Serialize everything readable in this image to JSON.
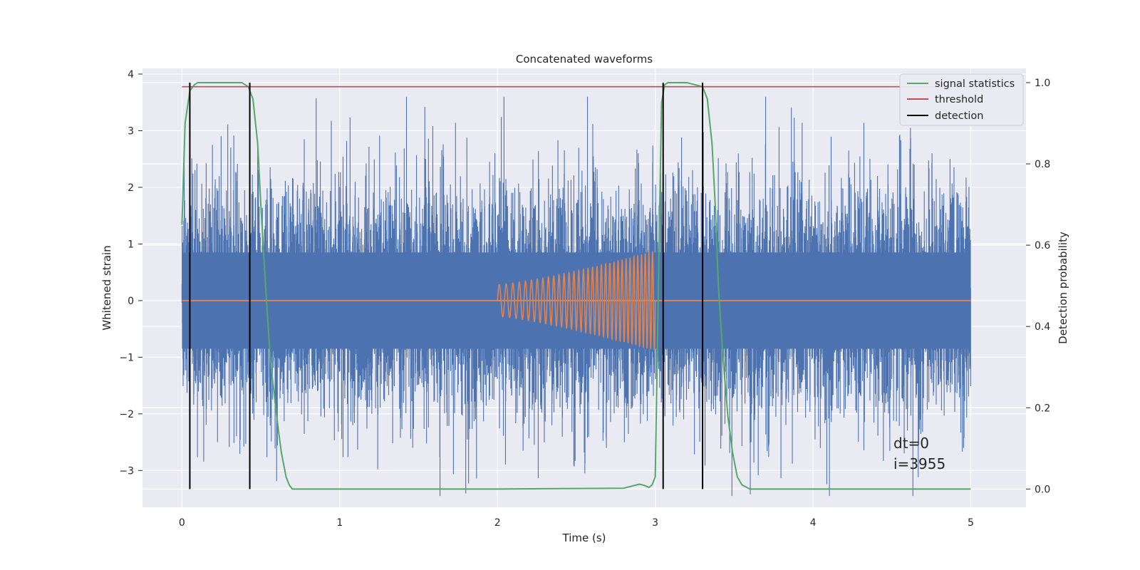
{
  "chart_data": {
    "type": "line",
    "title": "Concatenated waveforms",
    "xlabel": "Time (s)",
    "ylabel_left": "Whitened strain",
    "ylabel_right": "Detection probability",
    "xlim": [
      -0.25,
      5.35
    ],
    "ylim_left": [
      -3.65,
      4.1
    ],
    "ylim_right": [
      -0.045,
      1.035
    ],
    "x_ticks": [
      0,
      1,
      2,
      3,
      4,
      5
    ],
    "y_left_ticks": [
      -3,
      -2,
      -1,
      0,
      1,
      2,
      3,
      4
    ],
    "y_right_ticks": [
      0.0,
      0.2,
      0.4,
      0.6,
      0.8,
      1.0
    ],
    "grid": true,
    "legend_position": "top-right",
    "legend": [
      "signal statistics",
      "threshold",
      "detection"
    ],
    "annotations": [
      "dt=0",
      "i=3955"
    ],
    "colors": {
      "strain": "#4c72b0",
      "template": "#dd8452",
      "signal_statistics": "#55a868",
      "threshold": "#c44e52",
      "detection": "#000000",
      "axes_bg": "#eaeaf2",
      "grid": "#ffffff"
    },
    "series": [
      {
        "name": "signal statistics",
        "axis": "right",
        "x": [
          0,
          0.02,
          0.05,
          0.08,
          0.1,
          0.15,
          0.2,
          0.3,
          0.38,
          0.42,
          0.45,
          0.48,
          0.5,
          0.53,
          0.56,
          0.6,
          0.63,
          0.66,
          0.68,
          0.7,
          0.75,
          1.0,
          2.0,
          2.8,
          2.86,
          2.9,
          2.93,
          2.96,
          2.98,
          3.0,
          3.02,
          3.04,
          3.06,
          3.08,
          3.1,
          3.2,
          3.3,
          3.33,
          3.36,
          3.38,
          3.4,
          3.43,
          3.46,
          3.49,
          3.52,
          3.55,
          3.6,
          4.0,
          5.0
        ],
        "y": [
          0.65,
          0.9,
          0.98,
          0.995,
          1.0,
          1.0,
          1.0,
          1.0,
          1.0,
          0.99,
          0.96,
          0.85,
          0.7,
          0.5,
          0.32,
          0.18,
          0.09,
          0.03,
          0.01,
          0.0,
          0.0,
          0.0,
          0.0,
          0.002,
          0.008,
          0.012,
          0.009,
          0.004,
          0.01,
          0.03,
          0.5,
          0.95,
          0.995,
          1.0,
          1.0,
          1.0,
          0.99,
          0.96,
          0.85,
          0.7,
          0.5,
          0.32,
          0.18,
          0.09,
          0.03,
          0.01,
          0.0,
          0.0,
          0.0
        ]
      },
      {
        "name": "threshold",
        "axis": "right",
        "x": [
          0,
          5
        ],
        "y": [
          0.99,
          0.99
        ]
      },
      {
        "name": "detection",
        "axis": "right",
        "type": "vlines",
        "x": [
          0.05,
          0.43,
          3.05,
          3.3
        ],
        "y_range": [
          0.0,
          1.0
        ]
      }
    ]
  }
}
